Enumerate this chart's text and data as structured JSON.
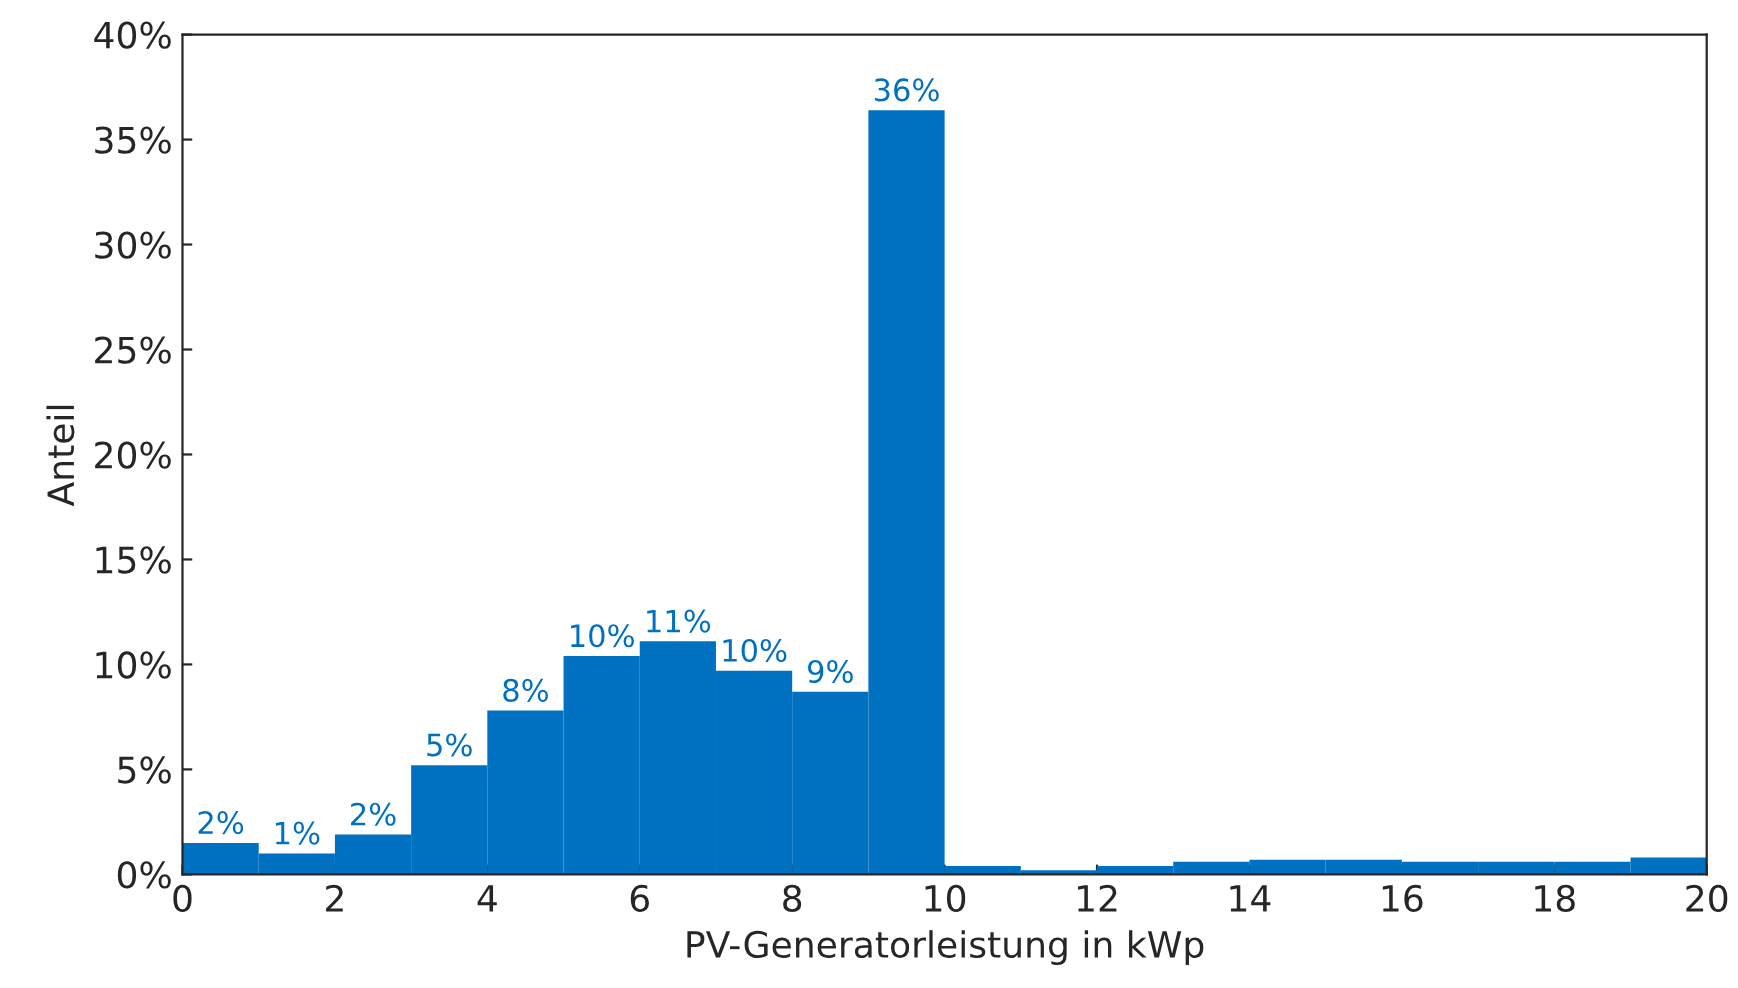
{
  "chart_data": {
    "type": "histogram",
    "xlabel": "PV-Generatorleistung in kWp",
    "ylabel": "Anteil",
    "bins": [
      0,
      1,
      2,
      3,
      4,
      5,
      6,
      7,
      8,
      9,
      10,
      11,
      12,
      13,
      14,
      15,
      16,
      17,
      18,
      19,
      20
    ],
    "values": [
      1.5,
      1.0,
      1.9,
      5.2,
      7.8,
      10.4,
      11.1,
      9.7,
      8.7,
      36.4,
      0.4,
      0.2,
      0.4,
      0.6,
      0.7,
      0.7,
      0.6,
      0.6,
      0.6,
      0.8
    ],
    "value_labels": [
      "2%",
      "1%",
      "2%",
      "5%",
      "8%",
      "10%",
      "11%",
      "10%",
      "9%",
      "36%",
      null,
      null,
      null,
      null,
      null,
      null,
      null,
      null,
      null,
      null
    ],
    "color": "#0070c0",
    "xlim": [
      0,
      20
    ],
    "xticks": [
      0,
      2,
      4,
      6,
      8,
      10,
      12,
      14,
      16,
      18,
      20
    ],
    "ylim": [
      0,
      40
    ],
    "yticks": [
      {
        "value": 0,
        "label": "0%"
      },
      {
        "value": 5,
        "label": "5%"
      },
      {
        "value": 10,
        "label": "10%"
      },
      {
        "value": 15,
        "label": "15%"
      },
      {
        "value": 20,
        "label": "20%"
      },
      {
        "value": 25,
        "label": "25%"
      },
      {
        "value": 30,
        "label": "30%"
      },
      {
        "value": 35,
        "label": "35%"
      },
      {
        "value": 40,
        "label": "40%"
      }
    ],
    "grid": false
  }
}
